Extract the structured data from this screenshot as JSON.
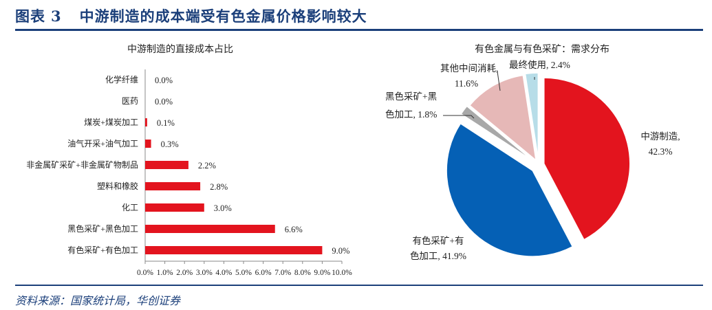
{
  "figure": {
    "label": "图表",
    "number": "3",
    "title": "中游制造的成本端受有色金属价格影响较大"
  },
  "source": "资料来源：国家统计局，华创证券",
  "chart_data": [
    {
      "type": "bar",
      "orientation": "horizontal",
      "title": "中游制造的直接成本占比",
      "categories": [
        "化学纤维",
        "医药",
        "煤炭+煤炭加工",
        "油气开采+油气加工",
        "非金属矿采矿+非金属矿物制品",
        "塑料和橡胶",
        "化工",
        "黑色采矿+黑色加工",
        "有色采矿+有色加工"
      ],
      "values": [
        0.0,
        0.0,
        0.1,
        0.3,
        2.2,
        2.8,
        3.0,
        6.6,
        9.0
      ],
      "data_labels": [
        "0.0%",
        "0.0%",
        "0.1%",
        "0.3%",
        "2.2%",
        "2.8%",
        "3.0%",
        "6.6%",
        "9.0%"
      ],
      "xlim": [
        0,
        10
      ],
      "x_ticks": [
        "0.0%",
        "1.0%",
        "2.0%",
        "3.0%",
        "4.0%",
        "5.0%",
        "6.0%",
        "7.0%",
        "8.0%",
        "9.0%",
        "10.0%"
      ],
      "color": "#e3141e",
      "grid": false
    },
    {
      "type": "pie",
      "title": "有色金属与有色采矿：需求分布",
      "slices": [
        {
          "label": "中游制造",
          "value": 42.3,
          "text": [
            "中游制造,",
            "42.3%"
          ],
          "color": "#e3141e"
        },
        {
          "label": "有色采矿+有色加工",
          "value": 41.9,
          "text": [
            "有色采矿+有",
            "色加工, 41.9%"
          ],
          "color": "#0560b5"
        },
        {
          "label": "黑色采矿+黑色加工",
          "value": 1.8,
          "text": [
            "黑色采矿+黑",
            "色加工, 1.8%"
          ],
          "color": "#a8a8a8"
        },
        {
          "label": "其他中间消耗",
          "value": 11.6,
          "text": [
            "其他中间消耗,",
            "11.6%"
          ],
          "color": "#e6b8b7"
        },
        {
          "label": "最终使用",
          "value": 2.4,
          "text": [
            "最终使用, 2.4%"
          ],
          "color": "#b7dde8"
        }
      ]
    }
  ]
}
